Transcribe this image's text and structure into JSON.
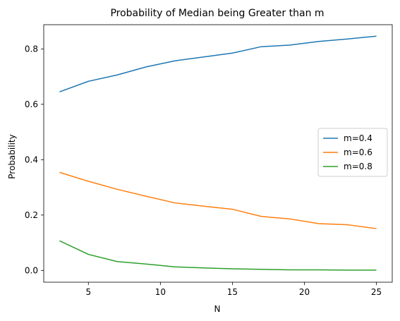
{
  "chart_data": {
    "type": "line",
    "title": "Probability of Median being Greater than m",
    "xlabel": "N",
    "ylabel": "Probability",
    "xlim": [
      1.9,
      26.1
    ],
    "ylim": [
      -0.0425,
      0.8875
    ],
    "xticks": [
      5,
      10,
      15,
      20,
      25
    ],
    "yticks": [
      0.0,
      0.2,
      0.4,
      0.6,
      0.8
    ],
    "xtick_labels": [
      "5",
      "10",
      "15",
      "20",
      "25"
    ],
    "ytick_labels": [
      "0.0",
      "0.2",
      "0.4",
      "0.6",
      "0.8"
    ],
    "grid": false,
    "legend_position": "center-right",
    "x": [
      3,
      5,
      7,
      9,
      11,
      13,
      15,
      17,
      19,
      21,
      23,
      25
    ],
    "series": [
      {
        "name": "m=0.4",
        "color": "#1f77b4",
        "values": [
          0.645,
          0.683,
          0.706,
          0.735,
          0.757,
          0.771,
          0.785,
          0.808,
          0.814,
          0.827,
          0.836,
          0.846
        ]
      },
      {
        "name": "m=0.6",
        "color": "#ff7f0e",
        "values": [
          0.354,
          0.322,
          0.293,
          0.268,
          0.244,
          0.232,
          0.221,
          0.195,
          0.186,
          0.169,
          0.165,
          0.151
        ]
      },
      {
        "name": "m=0.8",
        "color": "#2ca02c",
        "values": [
          0.107,
          0.058,
          0.032,
          0.023,
          0.013,
          0.009,
          0.006,
          0.004,
          0.002,
          0.002,
          0.001,
          0.001
        ]
      }
    ]
  }
}
